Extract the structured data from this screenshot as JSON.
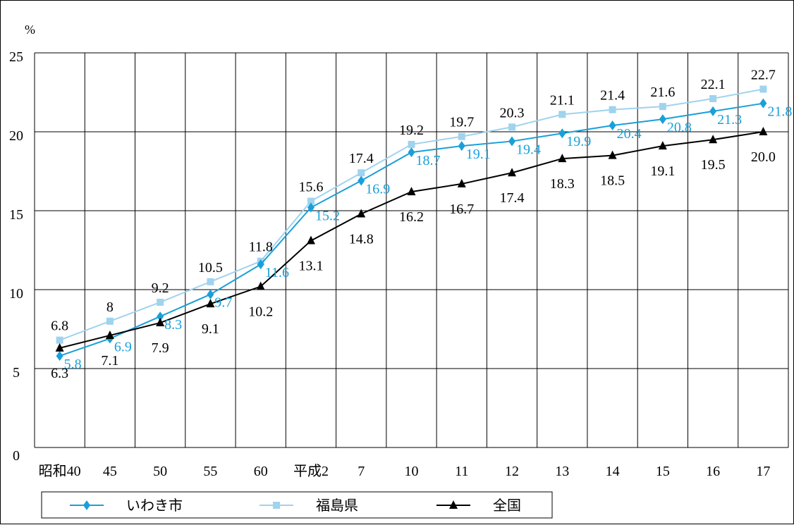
{
  "chart_data": {
    "type": "line",
    "yunit": "%",
    "categories": [
      "昭和40",
      "45",
      "50",
      "55",
      "60",
      "平成2",
      "7",
      "10",
      "11",
      "12",
      "13",
      "14",
      "15",
      "16",
      "17"
    ],
    "ylim": [
      0,
      25
    ],
    "yticks": [
      "0",
      "5",
      "10",
      "15",
      "20",
      "25"
    ],
    "grid": true,
    "legend_position": "bottom",
    "series": [
      {
        "name": "いわき市",
        "color": "#1a9fd9",
        "marker": "diamond",
        "values": [
          5.8,
          6.9,
          8.3,
          9.7,
          11.6,
          15.2,
          16.9,
          18.7,
          19.1,
          19.4,
          19.9,
          20.4,
          20.8,
          21.3,
          21.8
        ],
        "labels": [
          "5.8",
          "6.9",
          "8.3",
          "9.7",
          "11.6",
          "15.2",
          "16.9",
          "18.7",
          "19.1",
          "19.4",
          "19.9",
          "20.4",
          "20.8",
          "21.3",
          "21.8"
        ]
      },
      {
        "name": "福島県",
        "color": "#9fd3ee",
        "marker": "square",
        "values": [
          6.8,
          8.0,
          9.2,
          10.5,
          11.8,
          15.6,
          17.4,
          19.2,
          19.7,
          20.3,
          21.1,
          21.4,
          21.6,
          22.1,
          22.7
        ],
        "labels": [
          "6.8",
          "8",
          "9.2",
          "10.5",
          "11.8",
          "15.6",
          "17.4",
          "19.2",
          "19.7",
          "20.3",
          "21.1",
          "21.4",
          "21.6",
          "22.1",
          "22.7"
        ]
      },
      {
        "name": "全国",
        "color": "#000000",
        "marker": "triangle",
        "values": [
          6.3,
          7.1,
          7.9,
          9.1,
          10.2,
          13.1,
          14.8,
          16.2,
          16.7,
          17.4,
          18.3,
          18.5,
          19.1,
          19.5,
          20.0
        ],
        "labels": [
          "6.3",
          "7.1",
          "7.9",
          "9.1",
          "10.2",
          "13.1",
          "14.8",
          "16.2",
          "16.7",
          "17.4",
          "18.3",
          "18.5",
          "19.1",
          "19.5",
          "20.0"
        ]
      }
    ]
  }
}
